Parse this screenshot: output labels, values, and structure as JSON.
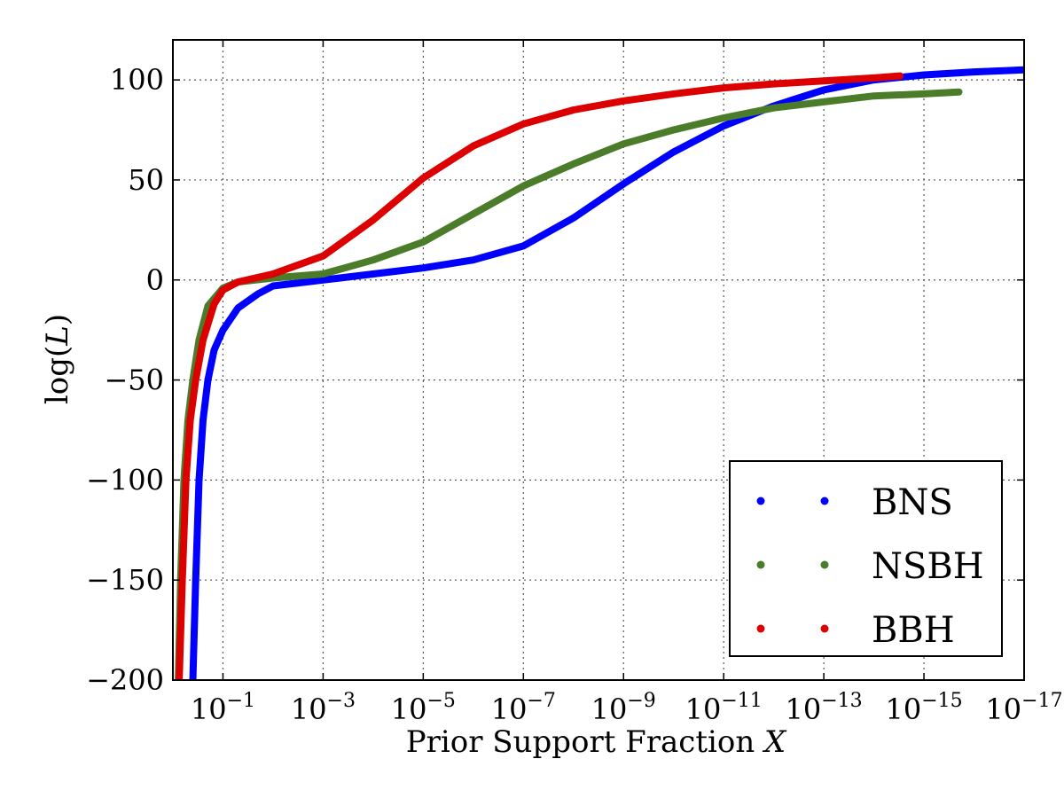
{
  "chart_data": {
    "type": "line",
    "xlabel": "Prior Support Fraction X",
    "ylabel": "log(L)",
    "x_scale": "log",
    "x_direction": "decreasing",
    "xlim": [
      1,
      1e-17
    ],
    "ylim": [
      -200,
      120
    ],
    "grid": true,
    "legend_position": "lower-right",
    "x_ticks": [
      {
        "value": 0.1,
        "base": "10",
        "exp": "−1"
      },
      {
        "value": 0.001,
        "base": "10",
        "exp": "−3"
      },
      {
        "value": 1e-05,
        "base": "10",
        "exp": "−5"
      },
      {
        "value": 1e-07,
        "base": "10",
        "exp": "−7"
      },
      {
        "value": 1e-09,
        "base": "10",
        "exp": "−9"
      },
      {
        "value": 1e-11,
        "base": "10",
        "exp": "−11"
      },
      {
        "value": 1e-13,
        "base": "10",
        "exp": "−13"
      },
      {
        "value": 1e-15,
        "base": "10",
        "exp": "−15"
      },
      {
        "value": 1e-17,
        "base": "10",
        "exp": "−17"
      }
    ],
    "y_ticks": [
      {
        "value": 100,
        "label": "100"
      },
      {
        "value": 50,
        "label": "50"
      },
      {
        "value": 0,
        "label": "0"
      },
      {
        "value": -50,
        "label": "−50"
      },
      {
        "value": -100,
        "label": "−100"
      },
      {
        "value": -150,
        "label": "−150"
      },
      {
        "value": -200,
        "label": "−200"
      }
    ],
    "series": [
      {
        "name": "BNS",
        "color": "#0000ff",
        "points": [
          [
            0.4,
            -200
          ],
          [
            0.35,
            -150
          ],
          [
            0.3,
            -100
          ],
          [
            0.25,
            -70
          ],
          [
            0.2,
            -50
          ],
          [
            0.15,
            -35
          ],
          [
            0.1,
            -25
          ],
          [
            0.05,
            -14
          ],
          [
            0.02,
            -7
          ],
          [
            0.01,
            -3
          ],
          [
            0.001,
            0
          ],
          [
            0.0001,
            3
          ],
          [
            1e-05,
            6
          ],
          [
            1e-06,
            10
          ],
          [
            1e-07,
            17
          ],
          [
            1e-08,
            31
          ],
          [
            1e-09,
            48
          ],
          [
            1e-10,
            64
          ],
          [
            1e-11,
            77
          ],
          [
            1e-12,
            87
          ],
          [
            1e-13,
            95
          ],
          [
            1e-14,
            100
          ],
          [
            1e-15,
            102.5
          ],
          [
            1e-16,
            104
          ],
          [
            1e-17,
            105
          ]
        ]
      },
      {
        "name": "NSBH",
        "color": "#4a7c2a",
        "points": [
          [
            0.78,
            -200
          ],
          [
            0.7,
            -150
          ],
          [
            0.6,
            -100
          ],
          [
            0.5,
            -70
          ],
          [
            0.4,
            -50
          ],
          [
            0.3,
            -30
          ],
          [
            0.2,
            -13
          ],
          [
            0.1,
            -4
          ],
          [
            0.05,
            -1
          ],
          [
            0.01,
            1
          ],
          [
            0.001,
            3
          ],
          [
            0.0001,
            10
          ],
          [
            1e-05,
            19
          ],
          [
            1e-06,
            33
          ],
          [
            1e-07,
            47
          ],
          [
            1e-08,
            58
          ],
          [
            1e-09,
            68
          ],
          [
            1e-10,
            75
          ],
          [
            1e-11,
            81
          ],
          [
            1e-12,
            86
          ],
          [
            1e-13,
            89
          ],
          [
            1e-14,
            92
          ],
          [
            1e-15,
            93
          ],
          [
            2e-16,
            94
          ]
        ]
      },
      {
        "name": "BBH",
        "color": "#dd0000",
        "points": [
          [
            0.75,
            -200
          ],
          [
            0.65,
            -150
          ],
          [
            0.55,
            -100
          ],
          [
            0.45,
            -70
          ],
          [
            0.35,
            -50
          ],
          [
            0.25,
            -30
          ],
          [
            0.15,
            -12
          ],
          [
            0.1,
            -5
          ],
          [
            0.05,
            -1
          ],
          [
            0.01,
            3
          ],
          [
            0.001,
            12
          ],
          [
            0.0001,
            30
          ],
          [
            1e-05,
            51
          ],
          [
            1e-06,
            67
          ],
          [
            1e-07,
            78
          ],
          [
            1e-08,
            85
          ],
          [
            1e-09,
            89.5
          ],
          [
            1e-10,
            93
          ],
          [
            1e-11,
            96
          ],
          [
            1e-12,
            98
          ],
          [
            1e-13,
            99.5
          ],
          [
            1e-14,
            101
          ],
          [
            3e-15,
            102
          ]
        ]
      }
    ]
  }
}
